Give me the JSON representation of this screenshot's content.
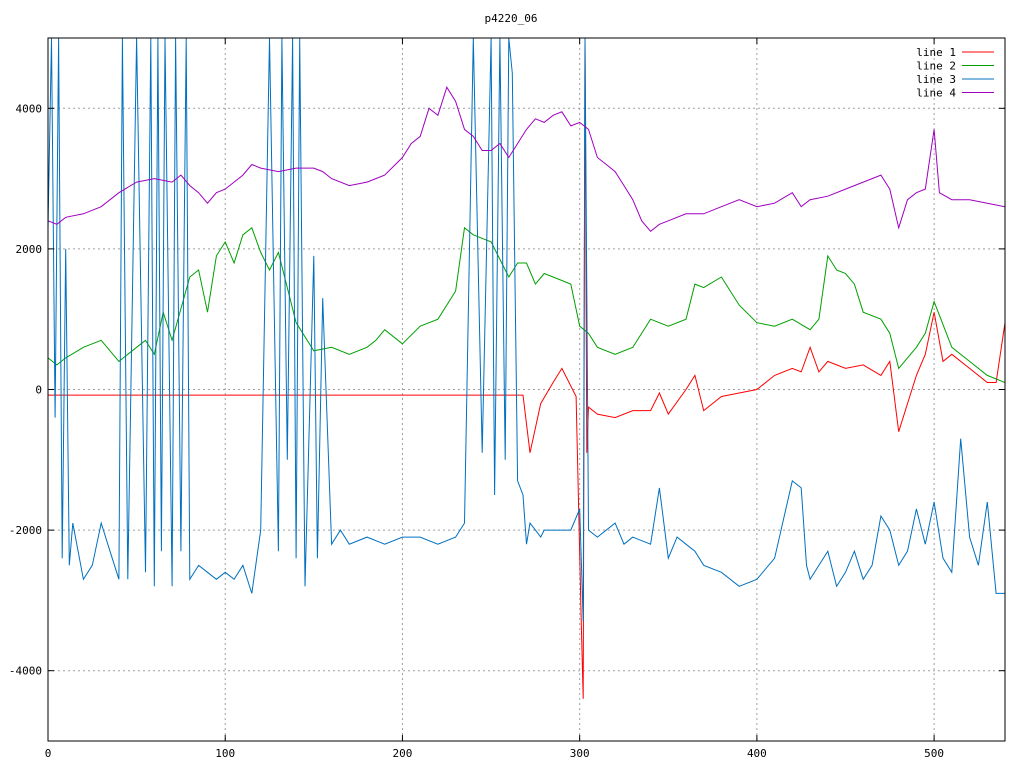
{
  "chart_data": {
    "type": "line",
    "title": "p4220_06",
    "xlabel": "",
    "ylabel": "",
    "xlim": [
      0,
      540
    ],
    "ylim": [
      -5000,
      5000
    ],
    "xticks": [
      0,
      100,
      200,
      300,
      400,
      500
    ],
    "yticks": [
      -4000,
      -2000,
      0,
      2000,
      4000
    ],
    "ytick_labels": [
      "-4000",
      "-2000",
      "0",
      "2000",
      "4000"
    ],
    "grid": true,
    "legend": "top-right",
    "series": [
      {
        "name": "line 1",
        "color": "#ff0000",
        "x": [
          0,
          100,
          200,
          268,
          272,
          278,
          285,
          290,
          298,
          301,
          302,
          303,
          304,
          305,
          310,
          320,
          330,
          340,
          345,
          350,
          360,
          365,
          370,
          380,
          390,
          400,
          410,
          420,
          425,
          430,
          435,
          440,
          450,
          460,
          470,
          475,
          480,
          485,
          490,
          495,
          500,
          505,
          510,
          520,
          530,
          535,
          540
        ],
        "y": [
          -80,
          -80,
          -80,
          -80,
          -900,
          -200,
          100,
          300,
          -100,
          -3400,
          -4400,
          5000,
          -900,
          -250,
          -350,
          -400,
          -300,
          -300,
          -50,
          -350,
          0,
          200,
          -300,
          -100,
          -50,
          0,
          200,
          300,
          250,
          600,
          250,
          400,
          300,
          350,
          200,
          400,
          -600,
          -200,
          200,
          500,
          1100,
          400,
          500,
          300,
          100,
          100,
          950
        ]
      },
      {
        "name": "line 2",
        "color": "#00a000",
        "x": [
          0,
          5,
          10,
          20,
          30,
          40,
          50,
          55,
          60,
          65,
          70,
          80,
          85,
          90,
          95,
          100,
          105,
          110,
          115,
          120,
          125,
          130,
          135,
          140,
          150,
          160,
          170,
          180,
          185,
          190,
          200,
          210,
          220,
          230,
          235,
          240,
          250,
          260,
          265,
          270,
          275,
          280,
          285,
          290,
          295,
          300,
          305,
          310,
          320,
          330,
          340,
          350,
          360,
          365,
          370,
          380,
          390,
          400,
          410,
          420,
          430,
          435,
          440,
          445,
          450,
          455,
          460,
          470,
          475,
          480,
          490,
          495,
          500,
          510,
          520,
          530,
          540
        ],
        "y": [
          450,
          350,
          450,
          600,
          700,
          400,
          600,
          700,
          500,
          1100,
          700,
          1600,
          1700,
          1100,
          1900,
          2100,
          1800,
          2200,
          2300,
          1950,
          1700,
          1950,
          1450,
          950,
          550,
          600,
          500,
          600,
          700,
          850,
          650,
          900,
          1000,
          1400,
          2300,
          2200,
          2100,
          1600,
          1800,
          1800,
          1500,
          1650,
          1600,
          1550,
          1500,
          900,
          800,
          600,
          500,
          600,
          1000,
          900,
          1000,
          1500,
          1450,
          1600,
          1200,
          950,
          900,
          1000,
          850,
          1000,
          1900,
          1700,
          1650,
          1500,
          1100,
          1000,
          800,
          300,
          600,
          800,
          1250,
          600,
          400,
          200,
          100
        ]
      },
      {
        "name": "line 3",
        "color": "#0070c0",
        "x": [
          0,
          2,
          4,
          6,
          8,
          10,
          12,
          14,
          20,
          25,
          30,
          35,
          40,
          42,
          45,
          50,
          55,
          58,
          60,
          62,
          64,
          66,
          70,
          72,
          75,
          78,
          80,
          85,
          90,
          95,
          100,
          105,
          110,
          115,
          120,
          125,
          130,
          132,
          135,
          138,
          140,
          142,
          145,
          150,
          152,
          155,
          160,
          165,
          170,
          180,
          190,
          200,
          210,
          220,
          230,
          235,
          240,
          245,
          250,
          252,
          255,
          258,
          260,
          262,
          265,
          268,
          270,
          272,
          275,
          278,
          280,
          285,
          290,
          295,
          300,
          302,
          303,
          305,
          310,
          320,
          325,
          330,
          340,
          345,
          350,
          355,
          360,
          365,
          370,
          380,
          390,
          400,
          410,
          420,
          425,
          428,
          430,
          440,
          445,
          450,
          455,
          460,
          465,
          470,
          475,
          480,
          485,
          490,
          495,
          500,
          505,
          510,
          515,
          520,
          525,
          530,
          535,
          540
        ],
        "y": [
          2300,
          5000,
          -400,
          5000,
          -2400,
          2000,
          -2500,
          -1900,
          -2700,
          -2500,
          -1900,
          -2300,
          -2700,
          5000,
          -2700,
          5000,
          -2600,
          5000,
          -2800,
          5000,
          -2300,
          5000,
          -2800,
          5000,
          -2300,
          5000,
          -2700,
          -2500,
          -2600,
          -2700,
          -2600,
          -2700,
          -2500,
          -2900,
          -2000,
          5000,
          -2300,
          5000,
          -1000,
          5000,
          -2400,
          5000,
          -2800,
          1900,
          -2400,
          1300,
          -2200,
          -2000,
          -2200,
          -2100,
          -2200,
          -2100,
          -2100,
          -2200,
          -2100,
          -1900,
          5000,
          -900,
          5000,
          -1500,
          5000,
          -1000,
          5000,
          4500,
          -1300,
          -1500,
          -2200,
          -1900,
          -2000,
          -2100,
          -2000,
          -2000,
          -2000,
          -2000,
          -1700,
          -3300,
          5000,
          -2000,
          -2100,
          -1900,
          -2200,
          -2100,
          -2200,
          -1400,
          -2400,
          -2100,
          -2200,
          -2300,
          -2500,
          -2600,
          -2800,
          -2700,
          -2400,
          -1300,
          -1400,
          -2500,
          -2700,
          -2300,
          -2800,
          -2600,
          -2300,
          -2700,
          -2500,
          -1800,
          -2000,
          -2500,
          -2300,
          -1700,
          -2200,
          -1600,
          -2400,
          -2600,
          -700,
          -2100,
          -2500,
          -1600,
          -2900,
          -2900
        ]
      },
      {
        "name": "line 4",
        "color": "#a000c0",
        "x": [
          0,
          5,
          10,
          20,
          30,
          40,
          50,
          60,
          70,
          75,
          80,
          85,
          90,
          95,
          100,
          110,
          115,
          120,
          130,
          140,
          150,
          155,
          160,
          170,
          180,
          190,
          200,
          205,
          210,
          215,
          220,
          225,
          230,
          235,
          240,
          245,
          250,
          255,
          260,
          265,
          270,
          275,
          280,
          285,
          290,
          295,
          300,
          305,
          310,
          315,
          320,
          325,
          330,
          335,
          340,
          345,
          350,
          360,
          370,
          380,
          390,
          400,
          410,
          420,
          425,
          430,
          440,
          450,
          460,
          465,
          470,
          475,
          480,
          485,
          490,
          495,
          500,
          503,
          510,
          520,
          530,
          540
        ],
        "y": [
          2400,
          2350,
          2450,
          2500,
          2600,
          2800,
          2950,
          3000,
          2950,
          3050,
          2900,
          2800,
          2650,
          2800,
          2850,
          3050,
          3200,
          3150,
          3100,
          3150,
          3150,
          3100,
          3000,
          2900,
          2950,
          3050,
          3300,
          3500,
          3600,
          4000,
          3900,
          4300,
          4100,
          3700,
          3600,
          3400,
          3400,
          3500,
          3300,
          3500,
          3700,
          3850,
          3800,
          3900,
          3950,
          3750,
          3800,
          3700,
          3300,
          3200,
          3100,
          2900,
          2700,
          2400,
          2250,
          2350,
          2400,
          2500,
          2500,
          2600,
          2700,
          2600,
          2650,
          2800,
          2600,
          2700,
          2750,
          2850,
          2950,
          3000,
          3050,
          2850,
          2300,
          2700,
          2800,
          2850,
          3700,
          2800,
          2700,
          2700,
          2650,
          2600
        ]
      }
    ]
  }
}
